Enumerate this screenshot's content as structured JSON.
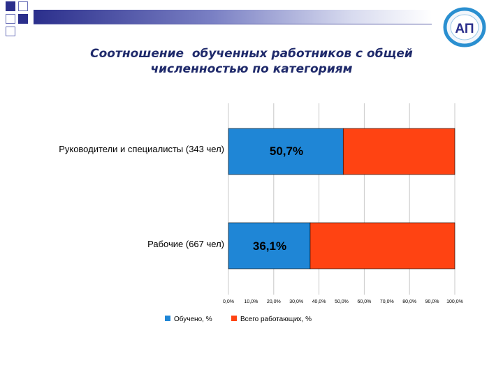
{
  "slide": {
    "title_line1": "Соотношение  обученных работников с общей",
    "title_line2": "численностью по категориям",
    "logo_text": "АП"
  },
  "colors": {
    "trained": "#1f86d6",
    "total": "#ff4312",
    "title": "#1f2a6b",
    "brand": "#2b2f8c"
  },
  "chart_data": {
    "type": "bar",
    "orientation": "horizontal",
    "stacked": true,
    "categories": [
      "Руководители и специалисты  (343 чел)",
      "Рабочие (667 чел)"
    ],
    "series": [
      {
        "name": "Обучено, %",
        "values": [
          50.7,
          36.1
        ],
        "color": "#1f86d6"
      },
      {
        "name": "Всего работающих, %",
        "values": [
          49.3,
          63.9
        ],
        "color": "#ff4312"
      }
    ],
    "data_labels": [
      "50,7%",
      "36,1%"
    ],
    "xlim": [
      0,
      100
    ],
    "xticks": [
      "0,0%",
      "10,0%",
      "20,0%",
      "30,0%",
      "40,0%",
      "50,0%",
      "60,0%",
      "70,0%",
      "80,0%",
      "90,0%",
      "100,0%"
    ],
    "grid": "vertical",
    "legend_position": "bottom",
    "title": "",
    "xlabel": "",
    "ylabel": ""
  }
}
